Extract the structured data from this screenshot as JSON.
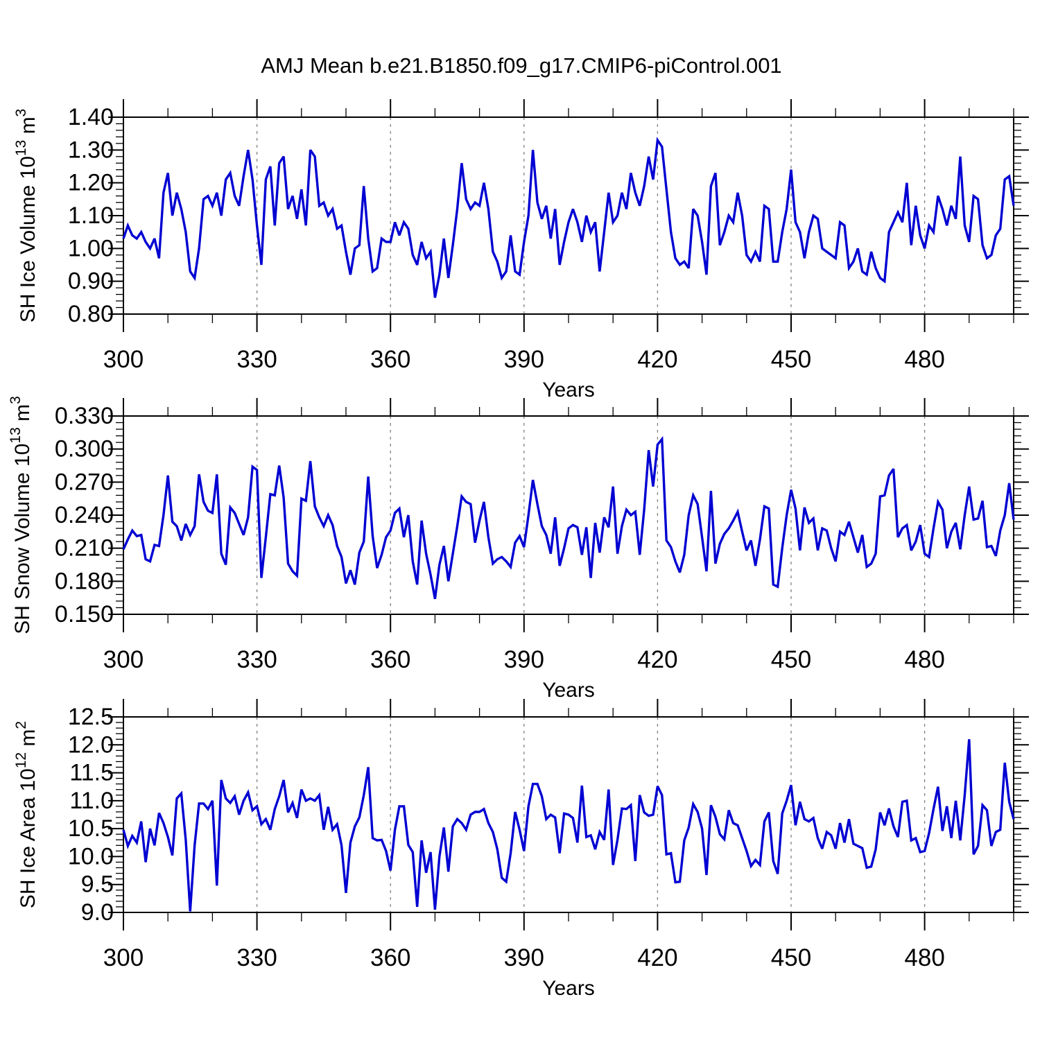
{
  "title": "AMJ Mean b.e21.B1850.f09_g17.CMIP6-piControl.001",
  "line_color": "#0000D2",
  "grid_color": "#808080",
  "axis_color": "#000000",
  "x_axis": {
    "label": "Years",
    "tick_labels": [
      "300",
      "330",
      "360",
      "390",
      "420",
      "450",
      "480"
    ],
    "tick_years": [
      300,
      330,
      360,
      390,
      420,
      450,
      480
    ],
    "minor_step": 10,
    "range": [
      300,
      500
    ],
    "gridline_years": [
      330,
      360,
      390,
      420,
      450,
      480
    ]
  },
  "chart_data": [
    {
      "type": "line",
      "ylabel": "SH Ice Volume 10^13 m^3",
      "ylabel_parts": [
        {
          "text": "SH Ice Volume 10"
        },
        {
          "text": "13",
          "sup": true
        },
        {
          "text": " m"
        },
        {
          "text": "3",
          "sup": true
        }
      ],
      "xlabel": "Years",
      "x_start": 300,
      "x_end": 500,
      "x_step": 1,
      "ylim": [
        0.8,
        1.4
      ],
      "yticks": [
        "0.80",
        "0.90",
        "1.00",
        "1.10",
        "1.20",
        "1.30",
        "1.40"
      ],
      "y_minor_step": 0.02,
      "grid": true,
      "legend": "none",
      "values": [
        1.03,
        1.07,
        1.04,
        1.03,
        1.05,
        1.02,
        1.0,
        1.03,
        0.97,
        1.17,
        1.23,
        1.1,
        1.17,
        1.12,
        1.05,
        0.93,
        0.91,
        1.0,
        1.15,
        1.16,
        1.13,
        1.17,
        1.1,
        1.21,
        1.23,
        1.16,
        1.13,
        1.22,
        1.3,
        1.21,
        1.07,
        0.95,
        1.21,
        1.25,
        1.07,
        1.26,
        1.28,
        1.12,
        1.16,
        1.09,
        1.18,
        1.07,
        1.3,
        1.28,
        1.13,
        1.14,
        1.1,
        1.12,
        1.06,
        1.07,
        0.99,
        0.92,
        1.0,
        1.01,
        1.19,
        1.03,
        0.93,
        0.94,
        1.03,
        1.02,
        1.02,
        1.08,
        1.04,
        1.08,
        1.06,
        0.98,
        0.95,
        1.02,
        0.97,
        0.99,
        0.85,
        0.92,
        1.03,
        0.91,
        1.01,
        1.12,
        1.26,
        1.15,
        1.12,
        1.14,
        1.13,
        1.2,
        1.12,
        0.99,
        0.96,
        0.91,
        0.93,
        1.04,
        0.93,
        0.92,
        1.02,
        1.1,
        1.3,
        1.14,
        1.09,
        1.13,
        1.03,
        1.12,
        0.95,
        1.02,
        1.08,
        1.12,
        1.08,
        1.02,
        1.1,
        1.05,
        1.08,
        0.93,
        1.05,
        1.17,
        1.08,
        1.1,
        1.17,
        1.12,
        1.23,
        1.17,
        1.13,
        1.19,
        1.28,
        1.21,
        1.33,
        1.31,
        1.18,
        1.05,
        0.97,
        0.95,
        0.96,
        0.94,
        1.12,
        1.1,
        1.02,
        0.92,
        1.19,
        1.23,
        1.01,
        1.05,
        1.1,
        1.08,
        1.17,
        1.1,
        0.98,
        0.96,
        0.99,
        0.96,
        1.13,
        1.12,
        0.96,
        0.96,
        1.05,
        1.12,
        1.24,
        1.08,
        1.05,
        0.97,
        1.05,
        1.1,
        1.09,
        1.0,
        0.99,
        0.98,
        0.97,
        1.08,
        1.07,
        0.94,
        0.96,
        1.0,
        0.93,
        0.92,
        0.99,
        0.94,
        0.91,
        0.9,
        1.05,
        1.08,
        1.11,
        1.08,
        1.2,
        1.01,
        1.13,
        1.04,
        1.0,
        1.07,
        1.05,
        1.16,
        1.12,
        1.07,
        1.13,
        1.09,
        1.28,
        1.07,
        1.02,
        1.16,
        1.15,
        1.01,
        0.97,
        0.98,
        1.04,
        1.06,
        1.21,
        1.22,
        1.13
      ]
    },
    {
      "type": "line",
      "ylabel": "SH Snow Volume 10^13 m^3",
      "ylabel_parts": [
        {
          "text": "SH Snow Volume 10"
        },
        {
          "text": "13",
          "sup": true
        },
        {
          "text": " m"
        },
        {
          "text": "3",
          "sup": true
        }
      ],
      "xlabel": "Years",
      "x_start": 300,
      "x_end": 500,
      "x_step": 1,
      "ylim": [
        0.15,
        0.33
      ],
      "yticks": [
        "0.150",
        "0.180",
        "0.210",
        "0.240",
        "0.270",
        "0.300",
        "0.330"
      ],
      "y_minor_step": 0.006,
      "grid": true,
      "legend": "none",
      "values": [
        0.209,
        0.218,
        0.226,
        0.221,
        0.222,
        0.2,
        0.198,
        0.213,
        0.212,
        0.24,
        0.276,
        0.234,
        0.23,
        0.217,
        0.232,
        0.222,
        0.23,
        0.277,
        0.252,
        0.244,
        0.242,
        0.277,
        0.205,
        0.195,
        0.247,
        0.242,
        0.232,
        0.222,
        0.238,
        0.284,
        0.281,
        0.183,
        0.22,
        0.259,
        0.258,
        0.285,
        0.256,
        0.196,
        0.189,
        0.185,
        0.255,
        0.253,
        0.289,
        0.248,
        0.238,
        0.23,
        0.24,
        0.231,
        0.212,
        0.202,
        0.178,
        0.19,
        0.177,
        0.206,
        0.216,
        0.275,
        0.221,
        0.192,
        0.204,
        0.22,
        0.226,
        0.242,
        0.246,
        0.22,
        0.24,
        0.198,
        0.177,
        0.235,
        0.205,
        0.186,
        0.164,
        0.195,
        0.212,
        0.18,
        0.205,
        0.23,
        0.257,
        0.252,
        0.25,
        0.215,
        0.235,
        0.252,
        0.22,
        0.196,
        0.2,
        0.202,
        0.198,
        0.193,
        0.215,
        0.221,
        0.211,
        0.24,
        0.272,
        0.25,
        0.23,
        0.222,
        0.205,
        0.238,
        0.194,
        0.21,
        0.228,
        0.231,
        0.229,
        0.204,
        0.229,
        0.183,
        0.233,
        0.206,
        0.238,
        0.229,
        0.266,
        0.205,
        0.23,
        0.245,
        0.24,
        0.243,
        0.204,
        0.245,
        0.299,
        0.266,
        0.304,
        0.309,
        0.217,
        0.211,
        0.198,
        0.188,
        0.204,
        0.24,
        0.258,
        0.25,
        0.22,
        0.189,
        0.262,
        0.196,
        0.214,
        0.223,
        0.228,
        0.235,
        0.243,
        0.225,
        0.208,
        0.217,
        0.194,
        0.218,
        0.248,
        0.246,
        0.177,
        0.175,
        0.21,
        0.24,
        0.263,
        0.246,
        0.208,
        0.247,
        0.233,
        0.237,
        0.208,
        0.228,
        0.226,
        0.21,
        0.198,
        0.225,
        0.222,
        0.234,
        0.22,
        0.206,
        0.222,
        0.193,
        0.196,
        0.205,
        0.257,
        0.258,
        0.276,
        0.282,
        0.22,
        0.228,
        0.231,
        0.208,
        0.216,
        0.231,
        0.205,
        0.202,
        0.228,
        0.252,
        0.245,
        0.21,
        0.225,
        0.233,
        0.209,
        0.24,
        0.266,
        0.236,
        0.237,
        0.253,
        0.211,
        0.212,
        0.203,
        0.226,
        0.24,
        0.269,
        0.236
      ]
    },
    {
      "type": "line",
      "ylabel": "SH Ice Area 10^12 m^2",
      "ylabel_parts": [
        {
          "text": "SH Ice Area 10"
        },
        {
          "text": "12",
          "sup": true
        },
        {
          "text": " m"
        },
        {
          "text": "2",
          "sup": true
        }
      ],
      "xlabel": "Years",
      "x_start": 300,
      "x_end": 500,
      "x_step": 1,
      "ylim": [
        9.0,
        12.5
      ],
      "yticks": [
        "9.0",
        "9.5",
        "10.0",
        "10.5",
        "11.0",
        "11.5",
        "12.0",
        "12.5"
      ],
      "y_minor_step": 0.1,
      "grid": true,
      "legend": "none",
      "values": [
        10.48,
        10.19,
        10.37,
        10.25,
        10.63,
        9.9,
        10.5,
        10.2,
        10.78,
        10.6,
        10.35,
        10.02,
        11.04,
        11.13,
        10.3,
        9.02,
        10.2,
        10.95,
        10.95,
        10.85,
        11.0,
        9.48,
        11.37,
        11.04,
        10.96,
        11.08,
        10.75,
        11.0,
        11.15,
        10.83,
        10.9,
        10.58,
        10.67,
        10.48,
        10.85,
        11.08,
        11.37,
        10.79,
        10.96,
        10.69,
        11.2,
        11.0,
        11.04,
        11.0,
        11.1,
        10.48,
        10.89,
        10.48,
        10.58,
        10.2,
        9.35,
        10.25,
        10.54,
        10.7,
        11.1,
        11.6,
        10.33,
        10.29,
        10.3,
        10.1,
        9.75,
        10.48,
        10.9,
        10.9,
        10.21,
        10.08,
        9.1,
        10.29,
        9.71,
        10.08,
        9.05,
        10.0,
        10.52,
        9.73,
        10.54,
        10.67,
        10.6,
        10.48,
        10.75,
        10.8,
        10.8,
        10.85,
        10.6,
        10.44,
        10.13,
        9.62,
        9.55,
        10.06,
        10.8,
        10.48,
        10.1,
        10.9,
        11.3,
        11.3,
        11.08,
        10.67,
        10.75,
        10.7,
        10.06,
        10.77,
        10.75,
        10.69,
        10.25,
        11.27,
        10.35,
        10.38,
        10.13,
        10.44,
        10.3,
        11.2,
        9.85,
        10.3,
        10.86,
        10.85,
        10.92,
        9.92,
        11.1,
        10.79,
        10.73,
        10.75,
        11.26,
        11.1,
        10.04,
        10.06,
        9.54,
        9.55,
        10.29,
        10.52,
        10.94,
        10.8,
        10.5,
        9.67,
        10.92,
        10.71,
        10.4,
        10.31,
        10.83,
        10.6,
        10.56,
        10.33,
        10.1,
        9.83,
        9.94,
        9.85,
        10.63,
        10.79,
        9.92,
        9.69,
        10.77,
        11.0,
        11.28,
        10.56,
        10.98,
        10.67,
        10.63,
        10.69,
        10.33,
        10.14,
        10.44,
        10.38,
        10.14,
        10.6,
        10.25,
        10.67,
        10.23,
        10.19,
        10.15,
        9.8,
        9.82,
        10.13,
        10.79,
        10.56,
        10.86,
        10.54,
        10.35,
        10.98,
        11.0,
        10.29,
        10.33,
        10.08,
        10.1,
        10.42,
        10.85,
        11.25,
        10.46,
        10.9,
        10.33,
        11.0,
        10.29,
        11.1,
        12.1,
        10.04,
        10.19,
        10.92,
        10.83,
        10.19,
        10.44,
        10.48,
        11.68,
        10.98,
        10.67
      ]
    }
  ]
}
